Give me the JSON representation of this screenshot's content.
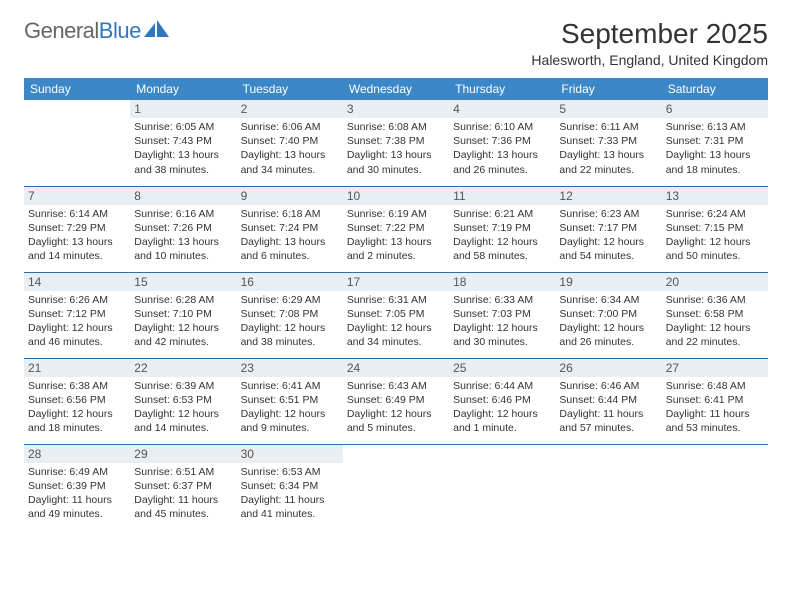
{
  "brand": {
    "part1": "General",
    "part2": "Blue"
  },
  "title": "September 2025",
  "location": "Halesworth, England, United Kingdom",
  "colors": {
    "header_bg": "#3b87c8",
    "header_text": "#ffffff",
    "daynum_bg": "#e9eef2",
    "row_border": "#2f6da8",
    "brand_blue": "#2f78bd",
    "text": "#333333"
  },
  "day_headers": [
    "Sunday",
    "Monday",
    "Tuesday",
    "Wednesday",
    "Thursday",
    "Friday",
    "Saturday"
  ],
  "weeks": [
    [
      {
        "num": "",
        "sunrise": "",
        "sunset": "",
        "daylight": ""
      },
      {
        "num": "1",
        "sunrise": "Sunrise: 6:05 AM",
        "sunset": "Sunset: 7:43 PM",
        "daylight": "Daylight: 13 hours and 38 minutes."
      },
      {
        "num": "2",
        "sunrise": "Sunrise: 6:06 AM",
        "sunset": "Sunset: 7:40 PM",
        "daylight": "Daylight: 13 hours and 34 minutes."
      },
      {
        "num": "3",
        "sunrise": "Sunrise: 6:08 AM",
        "sunset": "Sunset: 7:38 PM",
        "daylight": "Daylight: 13 hours and 30 minutes."
      },
      {
        "num": "4",
        "sunrise": "Sunrise: 6:10 AM",
        "sunset": "Sunset: 7:36 PM",
        "daylight": "Daylight: 13 hours and 26 minutes."
      },
      {
        "num": "5",
        "sunrise": "Sunrise: 6:11 AM",
        "sunset": "Sunset: 7:33 PM",
        "daylight": "Daylight: 13 hours and 22 minutes."
      },
      {
        "num": "6",
        "sunrise": "Sunrise: 6:13 AM",
        "sunset": "Sunset: 7:31 PM",
        "daylight": "Daylight: 13 hours and 18 minutes."
      }
    ],
    [
      {
        "num": "7",
        "sunrise": "Sunrise: 6:14 AM",
        "sunset": "Sunset: 7:29 PM",
        "daylight": "Daylight: 13 hours and 14 minutes."
      },
      {
        "num": "8",
        "sunrise": "Sunrise: 6:16 AM",
        "sunset": "Sunset: 7:26 PM",
        "daylight": "Daylight: 13 hours and 10 minutes."
      },
      {
        "num": "9",
        "sunrise": "Sunrise: 6:18 AM",
        "sunset": "Sunset: 7:24 PM",
        "daylight": "Daylight: 13 hours and 6 minutes."
      },
      {
        "num": "10",
        "sunrise": "Sunrise: 6:19 AM",
        "sunset": "Sunset: 7:22 PM",
        "daylight": "Daylight: 13 hours and 2 minutes."
      },
      {
        "num": "11",
        "sunrise": "Sunrise: 6:21 AM",
        "sunset": "Sunset: 7:19 PM",
        "daylight": "Daylight: 12 hours and 58 minutes."
      },
      {
        "num": "12",
        "sunrise": "Sunrise: 6:23 AM",
        "sunset": "Sunset: 7:17 PM",
        "daylight": "Daylight: 12 hours and 54 minutes."
      },
      {
        "num": "13",
        "sunrise": "Sunrise: 6:24 AM",
        "sunset": "Sunset: 7:15 PM",
        "daylight": "Daylight: 12 hours and 50 minutes."
      }
    ],
    [
      {
        "num": "14",
        "sunrise": "Sunrise: 6:26 AM",
        "sunset": "Sunset: 7:12 PM",
        "daylight": "Daylight: 12 hours and 46 minutes."
      },
      {
        "num": "15",
        "sunrise": "Sunrise: 6:28 AM",
        "sunset": "Sunset: 7:10 PM",
        "daylight": "Daylight: 12 hours and 42 minutes."
      },
      {
        "num": "16",
        "sunrise": "Sunrise: 6:29 AM",
        "sunset": "Sunset: 7:08 PM",
        "daylight": "Daylight: 12 hours and 38 minutes."
      },
      {
        "num": "17",
        "sunrise": "Sunrise: 6:31 AM",
        "sunset": "Sunset: 7:05 PM",
        "daylight": "Daylight: 12 hours and 34 minutes."
      },
      {
        "num": "18",
        "sunrise": "Sunrise: 6:33 AM",
        "sunset": "Sunset: 7:03 PM",
        "daylight": "Daylight: 12 hours and 30 minutes."
      },
      {
        "num": "19",
        "sunrise": "Sunrise: 6:34 AM",
        "sunset": "Sunset: 7:00 PM",
        "daylight": "Daylight: 12 hours and 26 minutes."
      },
      {
        "num": "20",
        "sunrise": "Sunrise: 6:36 AM",
        "sunset": "Sunset: 6:58 PM",
        "daylight": "Daylight: 12 hours and 22 minutes."
      }
    ],
    [
      {
        "num": "21",
        "sunrise": "Sunrise: 6:38 AM",
        "sunset": "Sunset: 6:56 PM",
        "daylight": "Daylight: 12 hours and 18 minutes."
      },
      {
        "num": "22",
        "sunrise": "Sunrise: 6:39 AM",
        "sunset": "Sunset: 6:53 PM",
        "daylight": "Daylight: 12 hours and 14 minutes."
      },
      {
        "num": "23",
        "sunrise": "Sunrise: 6:41 AM",
        "sunset": "Sunset: 6:51 PM",
        "daylight": "Daylight: 12 hours and 9 minutes."
      },
      {
        "num": "24",
        "sunrise": "Sunrise: 6:43 AM",
        "sunset": "Sunset: 6:49 PM",
        "daylight": "Daylight: 12 hours and 5 minutes."
      },
      {
        "num": "25",
        "sunrise": "Sunrise: 6:44 AM",
        "sunset": "Sunset: 6:46 PM",
        "daylight": "Daylight: 12 hours and 1 minute."
      },
      {
        "num": "26",
        "sunrise": "Sunrise: 6:46 AM",
        "sunset": "Sunset: 6:44 PM",
        "daylight": "Daylight: 11 hours and 57 minutes."
      },
      {
        "num": "27",
        "sunrise": "Sunrise: 6:48 AM",
        "sunset": "Sunset: 6:41 PM",
        "daylight": "Daylight: 11 hours and 53 minutes."
      }
    ],
    [
      {
        "num": "28",
        "sunrise": "Sunrise: 6:49 AM",
        "sunset": "Sunset: 6:39 PM",
        "daylight": "Daylight: 11 hours and 49 minutes."
      },
      {
        "num": "29",
        "sunrise": "Sunrise: 6:51 AM",
        "sunset": "Sunset: 6:37 PM",
        "daylight": "Daylight: 11 hours and 45 minutes."
      },
      {
        "num": "30",
        "sunrise": "Sunrise: 6:53 AM",
        "sunset": "Sunset: 6:34 PM",
        "daylight": "Daylight: 11 hours and 41 minutes."
      },
      {
        "num": "",
        "sunrise": "",
        "sunset": "",
        "daylight": ""
      },
      {
        "num": "",
        "sunrise": "",
        "sunset": "",
        "daylight": ""
      },
      {
        "num": "",
        "sunrise": "",
        "sunset": "",
        "daylight": ""
      },
      {
        "num": "",
        "sunrise": "",
        "sunset": "",
        "daylight": ""
      }
    ]
  ]
}
